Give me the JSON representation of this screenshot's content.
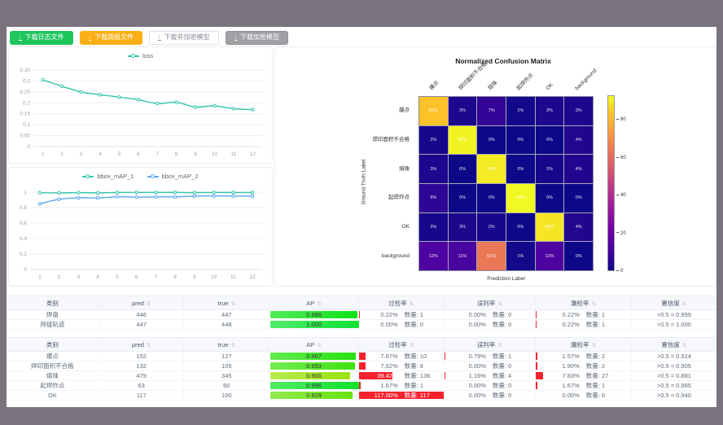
{
  "toolbar": {
    "buttons": [
      {
        "name": "download-log-file-button",
        "label": "下载日志文件",
        "style": "green"
      },
      {
        "name": "download-report-file-button",
        "label": "下载简报文件",
        "style": "orange"
      },
      {
        "name": "download-unencrypted-model-button",
        "label": "下载非加密模型",
        "style": "plain"
      },
      {
        "name": "download-encrypted-model-button",
        "label": "下载加密模型",
        "style": "gray"
      }
    ]
  },
  "chart_data": [
    {
      "type": "line",
      "name": "loss-chart",
      "x": [
        1,
        2,
        3,
        4,
        5,
        6,
        7,
        8,
        9,
        10,
        11,
        12
      ],
      "series": [
        {
          "name": "loss",
          "color": "#31c5a9",
          "values": [
            0.305,
            0.276,
            0.25,
            0.237,
            0.226,
            0.214,
            0.197,
            0.202,
            0.181,
            0.186,
            0.173,
            0.169
          ]
        }
      ],
      "ylim": [
        0,
        0.35
      ],
      "yticks": [
        0,
        0.05,
        0.1,
        0.15,
        0.2,
        0.25,
        0.3,
        0.35
      ],
      "legend_position": "top",
      "grid": true
    },
    {
      "type": "line",
      "name": "bbox-map-chart",
      "x": [
        1,
        2,
        3,
        4,
        5,
        6,
        7,
        8,
        9,
        10,
        11,
        12
      ],
      "series": [
        {
          "name": "bbox_mAP_1",
          "color": "#31c5a9",
          "values": [
            0.993,
            0.99,
            0.994,
            0.991,
            0.996,
            0.997,
            0.997,
            0.997,
            0.994,
            0.996,
            0.996,
            0.996
          ]
        },
        {
          "name": "bbox_mAP_2",
          "color": "#58a7f0",
          "values": [
            0.85,
            0.908,
            0.927,
            0.924,
            0.94,
            0.936,
            0.939,
            0.939,
            0.949,
            0.951,
            0.95,
            0.948
          ]
        }
      ],
      "ylim": [
        0,
        1
      ],
      "yticks": [
        0,
        0.2,
        0.4,
        0.6,
        0.8,
        1
      ],
      "legend_position": "top",
      "grid": true
    },
    {
      "type": "heatmap",
      "name": "confusion-matrix",
      "title": "Normalized Confusion Matrix",
      "xlabel": "Prediction Label",
      "ylabel": "Ground Truth Label",
      "labels": [
        "爆点",
        "焊印面积不合格",
        "熔珠",
        "起焊炸点",
        "OK",
        "background"
      ],
      "values_pct": [
        [
          81,
          3,
          7,
          1,
          3,
          3
        ],
        [
          2,
          92,
          0,
          0,
          0,
          4
        ],
        [
          3,
          0,
          90,
          0,
          2,
          4
        ],
        [
          6,
          0,
          0,
          93,
          0,
          0
        ],
        [
          2,
          3,
          2,
          0,
          89,
          4
        ],
        [
          12,
          11,
          61,
          1,
          12,
          0
        ]
      ],
      "colormap": "plasma",
      "vmin": 0,
      "vmax": 93,
      "colorbar_ticks": [
        0,
        20,
        40,
        60,
        80
      ],
      "legend_position": "right-colorbar"
    }
  ],
  "tables": [
    {
      "name": "weld-summary-table",
      "headers": [
        {
          "key": "label",
          "label": "类别",
          "sortable": false
        },
        {
          "key": "pred",
          "label": "pred",
          "sortable": true
        },
        {
          "key": "true",
          "label": "true",
          "sortable": true
        },
        {
          "key": "ap",
          "label": "AP",
          "sortable": true
        },
        {
          "key": "over",
          "label": "过检率",
          "sortable": true
        },
        {
          "key": "mis",
          "label": "误判率",
          "sortable": true
        },
        {
          "key": "miss",
          "label": "漏检率",
          "sortable": true
        },
        {
          "key": "conf",
          "label": "置信度",
          "sortable": true
        }
      ],
      "rows": [
        {
          "label": "焊盘",
          "pred": "446",
          "true": "447",
          "ap": "0.986",
          "ap_value": 0.986,
          "over": {
            "pct": "0.22%",
            "count": "数量: 1",
            "ratio": 0.22
          },
          "mis": {
            "pct": "0.00%",
            "count": "数量: 0",
            "ratio": 0
          },
          "miss": {
            "pct": "0.22%",
            "count": "数量: 1",
            "ratio": 0.22
          },
          "conf": ">0.5 = 0.999"
        },
        {
          "label": "焊缝轨迹",
          "pred": "447",
          "true": "448",
          "ap": "1.000",
          "ap_value": 1.0,
          "over": {
            "pct": "0.00%",
            "count": "数量: 0",
            "ratio": 0
          },
          "mis": {
            "pct": "0.00%",
            "count": "数量: 0",
            "ratio": 0
          },
          "miss": {
            "pct": "0.22%",
            "count": "数量: 1",
            "ratio": 0.22
          },
          "conf": ">0.5 = 1.000"
        }
      ]
    },
    {
      "name": "defect-summary-table",
      "headers": [
        {
          "key": "label",
          "label": "类别",
          "sortable": false
        },
        {
          "key": "pred",
          "label": "pred",
          "sortable": true
        },
        {
          "key": "true",
          "label": "true",
          "sortable": true
        },
        {
          "key": "ap",
          "label": "AP",
          "sortable": true
        },
        {
          "key": "over",
          "label": "过检率",
          "sortable": true
        },
        {
          "key": "mis",
          "label": "误判率",
          "sortable": true
        },
        {
          "key": "miss",
          "label": "漏检率",
          "sortable": true
        },
        {
          "key": "conf",
          "label": "置信度",
          "sortable": true
        }
      ],
      "rows": [
        {
          "label": "爆点",
          "pred": "152",
          "true": "127",
          "ap": "0.967",
          "ap_value": 0.967,
          "over": {
            "pct": "7.87%",
            "count": "数量: 10",
            "ratio": 7.87
          },
          "mis": {
            "pct": "0.79%",
            "count": "数量: 1",
            "ratio": 0.79
          },
          "miss": {
            "pct": "1.57%",
            "count": "数量: 2",
            "ratio": 1.57
          },
          "conf": ">0.5 = 0.924"
        },
        {
          "label": "焊印面积不合格",
          "pred": "132",
          "true": "105",
          "ap": "0.953",
          "ap_value": 0.953,
          "over": {
            "pct": "7.62%",
            "count": "数量: 8",
            "ratio": 7.62
          },
          "mis": {
            "pct": "0.00%",
            "count": "数量: 0",
            "ratio": 0
          },
          "miss": {
            "pct": "1.90%",
            "count": "数量: 2",
            "ratio": 1.9
          },
          "conf": ">0.5 = 0.905"
        },
        {
          "label": "熔珠",
          "pred": "479",
          "true": "345",
          "ap": "0.900",
          "ap_value": 0.9,
          "over": {
            "pct": "39.42%",
            "count": "数量: 136",
            "ratio": 39.42
          },
          "mis": {
            "pct": "1.16%",
            "count": "数量: 4",
            "ratio": 1.16
          },
          "miss": {
            "pct": "7.83%",
            "count": "数量: 27",
            "ratio": 7.83
          },
          "conf": ">0.5 = 0.881"
        },
        {
          "label": "起焊炸点",
          "pred": "63",
          "true": "60",
          "ap": "0.996",
          "ap_value": 0.996,
          "over": {
            "pct": "1.67%",
            "count": "数量: 1",
            "ratio": 1.67
          },
          "mis": {
            "pct": "0.00%",
            "count": "数量: 0",
            "ratio": 0
          },
          "miss": {
            "pct": "1.67%",
            "count": "数量: 1",
            "ratio": 1.67
          },
          "conf": ">0.5 = 0.985"
        },
        {
          "label": "OK",
          "pred": "117",
          "true": "100",
          "ap": "0.929",
          "ap_value": 0.929,
          "over": {
            "pct": "117.00%",
            "count": "数量: 117",
            "ratio": 117
          },
          "mis": {
            "pct": "0.00%",
            "count": "数量: 0",
            "ratio": 0
          },
          "miss": {
            "pct": "0.00%",
            "count": "数量: 0",
            "ratio": 0
          },
          "conf": ">0.5 = 0.940"
        }
      ]
    }
  ],
  "colors": {
    "accent_green": "#1fc65c",
    "accent_orange": "#fbaf15",
    "line_teal": "#31c5a9",
    "line_blue": "#58a7f0",
    "bar_red": "#f5222d"
  }
}
